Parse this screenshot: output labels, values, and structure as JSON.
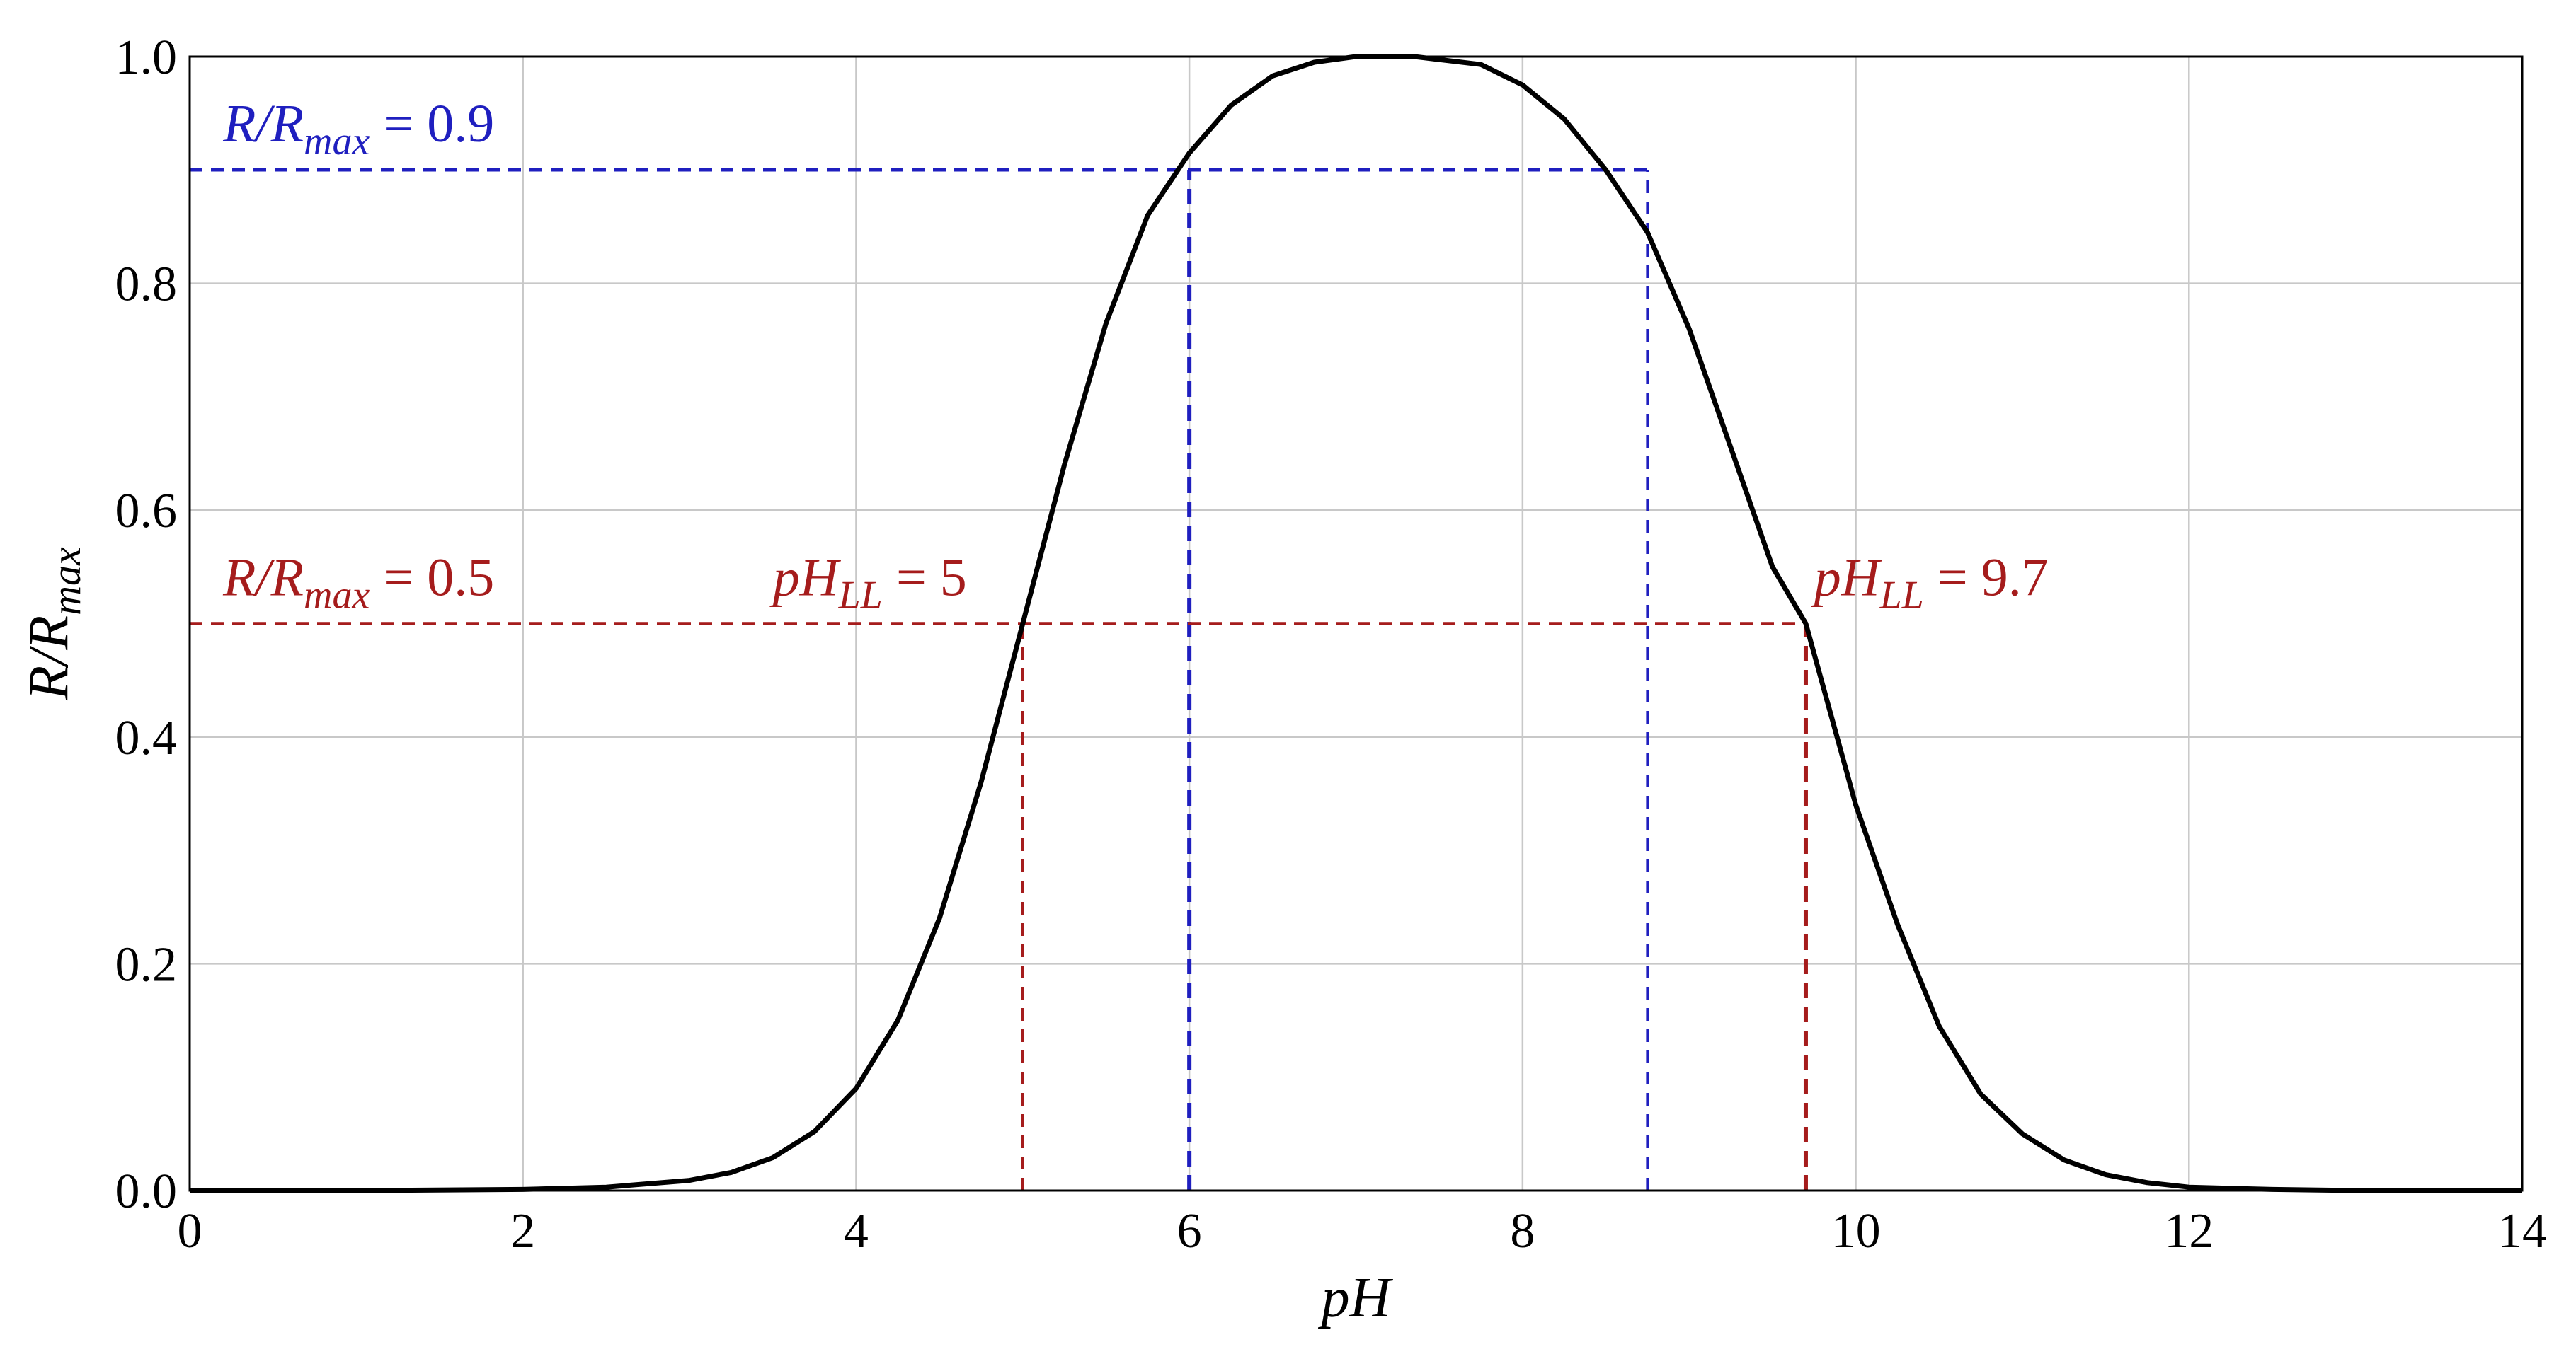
{
  "colors": {
    "curve": "#000000",
    "blue": "#1f1fbf",
    "red": "#a51c1c",
    "grid": "#c8c8c8"
  },
  "chart_data": {
    "type": "line",
    "title": "",
    "xlabel": "pH",
    "ylabel": {
      "base": "R/R",
      "sub": "max"
    },
    "xlim": [
      0,
      14
    ],
    "ylim": [
      0,
      1.0
    ],
    "x_ticks": [
      0,
      2,
      4,
      6,
      8,
      10,
      12,
      14
    ],
    "x_tick_labels": [
      "0",
      "2",
      "4",
      "6",
      "8",
      "10",
      "12",
      "14"
    ],
    "y_ticks": [
      0,
      0.2,
      0.4,
      0.6,
      0.8,
      1.0
    ],
    "y_tick_labels": [
      "0.0",
      "0.2",
      "0.4",
      "0.6",
      "0.8",
      "1.0"
    ],
    "grid": true,
    "series": [
      {
        "x": [
          0,
          1.0,
          2.0,
          2.5,
          3.0,
          3.25,
          3.5,
          3.75,
          4.0,
          4.25,
          4.5,
          4.75,
          5.0,
          5.25,
          5.5,
          5.75,
          6.0,
          6.25,
          6.5,
          6.75,
          7.0,
          7.35,
          7.75,
          8.0,
          8.25,
          8.5,
          8.75,
          9.0,
          9.25,
          9.5,
          9.7,
          10.0,
          10.25,
          10.5,
          10.75,
          11.0,
          11.25,
          11.5,
          11.75,
          12.0,
          12.5,
          13.0,
          14.0
        ],
        "y": [
          0.0,
          0.0,
          0.001,
          0.003,
          0.009,
          0.016,
          0.029,
          0.052,
          0.09,
          0.15,
          0.24,
          0.36,
          0.5,
          0.64,
          0.765,
          0.86,
          0.915,
          0.957,
          0.983,
          0.995,
          1.0,
          1.0,
          0.993,
          0.975,
          0.945,
          0.9,
          0.845,
          0.76,
          0.655,
          0.55,
          0.5,
          0.34,
          0.235,
          0.145,
          0.085,
          0.05,
          0.027,
          0.014,
          0.007,
          0.003,
          0.001,
          0.0,
          0.0
        ]
      }
    ],
    "reference_lines": [
      {
        "kind": "horizontal",
        "y": 0.9,
        "x_from": 0,
        "x_to": 8.75,
        "color": "blue"
      },
      {
        "kind": "vertical",
        "x": 6.0,
        "y_from": 0,
        "y_to": 0.9,
        "color": "blue",
        "style": "bold"
      },
      {
        "kind": "vertical",
        "x": 8.75,
        "y_from": 0,
        "y_to": 0.9,
        "color": "blue",
        "style": "thin"
      },
      {
        "kind": "horizontal",
        "y": 0.5,
        "x_from": 0,
        "x_to": 9.7,
        "color": "red"
      },
      {
        "kind": "vertical",
        "x": 5.0,
        "y_from": 0,
        "y_to": 0.5,
        "color": "red",
        "style": "thin"
      },
      {
        "kind": "vertical",
        "x": 9.7,
        "y_from": 0,
        "y_to": 0.5,
        "color": "red",
        "style": "bold"
      }
    ],
    "annotations": {
      "r09": {
        "base": "R/R",
        "sub": "max",
        "eq": " = 0.9",
        "x": 0.2,
        "y": 0.925
      },
      "r05": {
        "base": "R/R",
        "sub": "max",
        "eq": " = 0.5",
        "x": 0.2,
        "y": 0.525
      },
      "ph5": {
        "base": "pH",
        "sub": "LL",
        "eq": " = 5",
        "x": 3.5,
        "y": 0.525
      },
      "ph97": {
        "base": "pH",
        "sub": "LL",
        "eq": " = 9.7",
        "x": 9.75,
        "y": 0.525
      }
    }
  }
}
